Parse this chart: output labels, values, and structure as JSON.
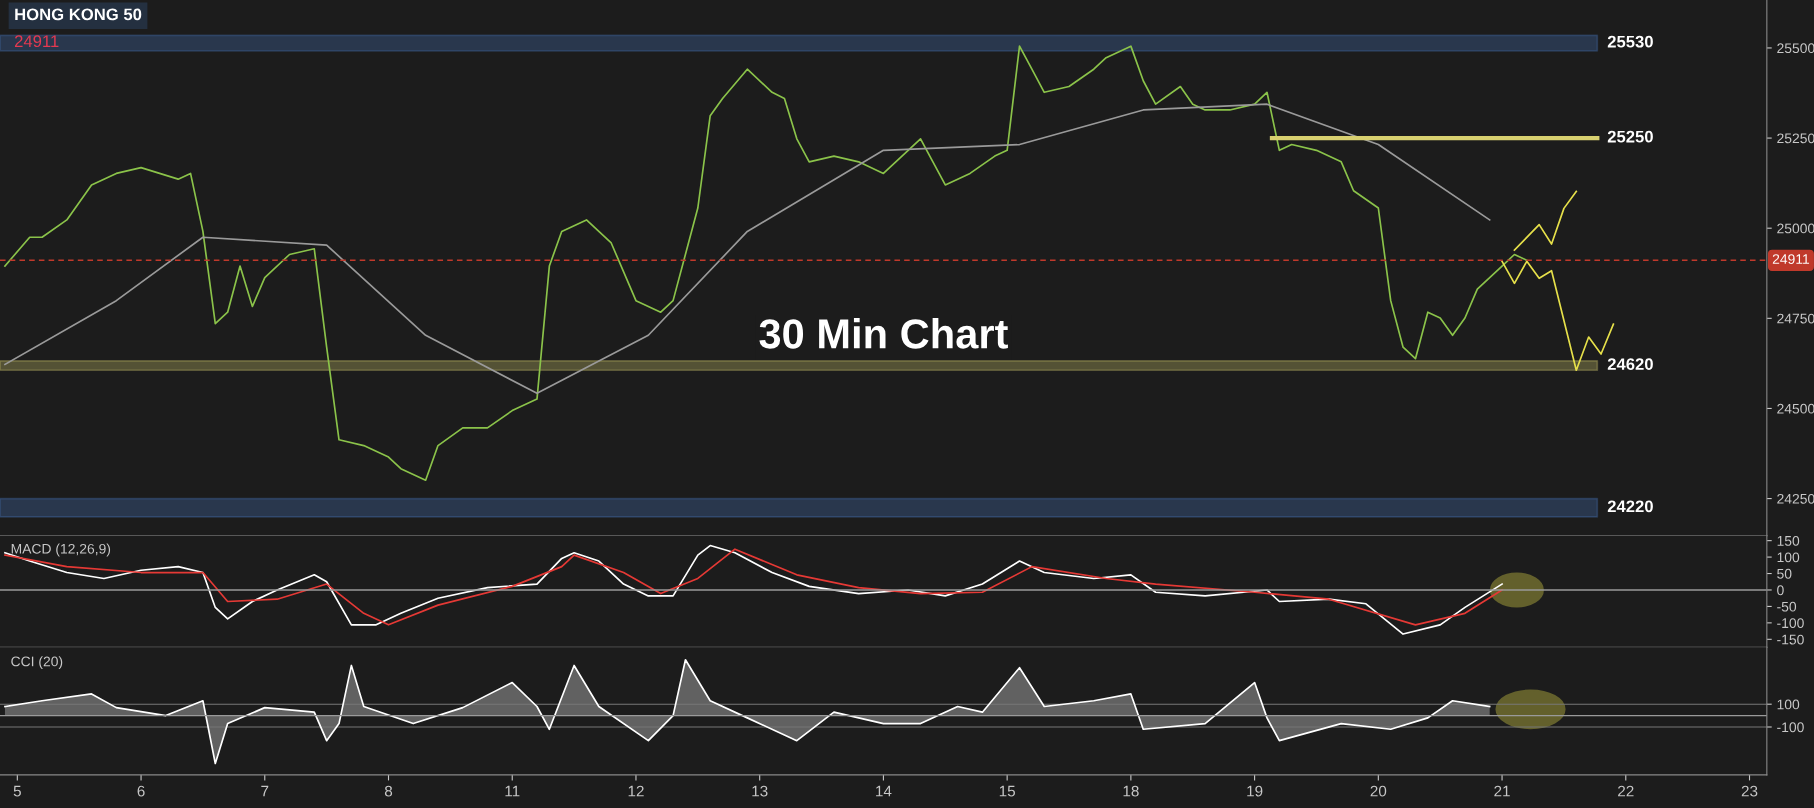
{
  "chart_data": [
    {
      "type": "line",
      "title": "HONG KONG 50",
      "subtitle": "24911",
      "annotations": [
        "30 Min Chart"
      ],
      "categories": [
        null,
        null,
        null,
        null,
        null,
        null,
        null,
        null,
        null,
        null,
        null,
        null,
        null,
        null,
        null,
        null,
        null,
        null,
        null,
        null,
        null,
        null,
        null,
        null,
        null,
        null,
        null,
        null,
        null,
        null,
        null,
        null,
        null,
        null,
        null,
        null,
        null,
        null,
        null,
        null,
        null,
        null,
        null,
        null,
        null,
        null,
        null,
        null,
        null,
        null,
        null,
        null,
        null,
        null,
        null,
        null,
        null,
        null,
        null,
        null,
        null,
        null,
        null,
        null,
        null,
        null,
        null,
        null,
        null,
        null,
        null,
        null,
        null,
        null,
        null,
        null,
        null,
        null,
        null,
        null,
        null,
        null,
        null,
        null,
        null,
        null,
        null,
        null,
        null,
        null,
        null,
        null,
        null,
        null,
        null,
        null,
        null,
        null,
        null,
        null,
        null,
        null,
        null,
        null,
        null,
        null,
        null,
        null,
        null,
        null,
        null,
        null,
        null,
        null,
        null,
        null,
        null,
        null,
        null,
        null,
        null,
        null,
        null,
        null,
        null,
        null,
        null,
        null,
        null,
        null,
        null,
        null,
        null,
        null,
        null,
        null,
        null,
        null,
        null,
        null,
        null,
        null,
        null
      ],
      "ylim": [
        24147,
        25633
      ],
      "yticks": [
        24250,
        24500,
        24750,
        25000,
        25250,
        25500
      ],
      "tick_labels": "y",
      "grid": false,
      "series": [
        {
          "color": "#8bc34a",
          "values": [
            24895,
            null,
            24975,
            24975,
            null,
            25023,
            null,
            25120,
            null,
            25152,
            null,
            25168,
            null,
            null,
            25136,
            25152,
            24991,
            24735,
            24767,
            24895,
            24783,
            24863,
            null,
            24927,
            null,
            24943,
            24670,
            24413,
            null,
            24397,
            null,
            24365,
            24333,
            null,
            24301,
            24397,
            null,
            24446,
            null,
            24446,
            null,
            24494,
            null,
            24526,
            24895,
            24991,
            null,
            25023,
            null,
            24959,
            null,
            24799,
            null,
            24767,
            24799,
            null,
            25056,
            25312,
            25360,
            null,
            25441,
            null,
            25377,
            25360,
            25248,
            25184,
            null,
            25200,
            null,
            25184,
            null,
            25152,
            null,
            25216,
            25248,
            25184,
            25120,
            null,
            25152,
            null,
            25200,
            25216,
            25505,
            25441,
            25377,
            null,
            25393,
            null,
            25441,
            25473,
            null,
            25505,
            25409,
            25344,
            null,
            25393,
            25344,
            25328,
            null,
            25328,
            null,
            25344,
            25377,
            25216,
            25232,
            null,
            25216,
            null,
            25184,
            25104,
            null,
            25056,
            24799,
            24670,
            24638,
            24767,
            24751,
            24703,
            24751,
            24831,
            null,
            24895,
            24927,
            24911,
            null,
            null,
            null,
            null,
            null,
            null,
            null,
            null,
            null,
            null,
            null,
            null,
            null,
            null,
            null,
            null,
            null,
            null,
            null
          ]
        },
        {
          "color": "#9a9a9a",
          "values": [
            24622,
            null,
            null,
            null,
            null,
            null,
            null,
            null,
            null,
            24799,
            null,
            null,
            null,
            null,
            null,
            null,
            24975,
            null,
            null,
            null,
            null,
            null,
            null,
            null,
            null,
            null,
            24953,
            null,
            null,
            null,
            null,
            null,
            null,
            null,
            24703,
            null,
            null,
            null,
            null,
            null,
            null,
            null,
            null,
            24542,
            null,
            null,
            null,
            null,
            null,
            null,
            null,
            null,
            24703,
            null,
            null,
            null,
            null,
            null,
            null,
            null,
            24991,
            null,
            null,
            null,
            null,
            null,
            null,
            null,
            null,
            null,
            null,
            25216,
            null,
            null,
            null,
            null,
            null,
            null,
            null,
            null,
            null,
            null,
            25232,
            null,
            null,
            null,
            null,
            null,
            null,
            null,
            null,
            null,
            25328,
            null,
            null,
            null,
            null,
            null,
            null,
            null,
            null,
            null,
            25344,
            null,
            null,
            null,
            null,
            null,
            null,
            null,
            null,
            25232,
            null,
            null,
            null,
            null,
            null,
            null,
            null,
            null,
            25023,
            null,
            null,
            null,
            null,
            null,
            null,
            null,
            null,
            null,
            null,
            null,
            null,
            null,
            null,
            null,
            null,
            null,
            null,
            null,
            null,
            null,
            null
          ]
        },
        {
          "color": "#e6e04a",
          "values": [
            null,
            null,
            null,
            null,
            null,
            null,
            null,
            null,
            null,
            null,
            null,
            null,
            null,
            null,
            null,
            null,
            null,
            null,
            null,
            null,
            null,
            null,
            null,
            null,
            null,
            null,
            null,
            null,
            null,
            null,
            null,
            null,
            null,
            null,
            null,
            null,
            null,
            null,
            null,
            null,
            null,
            null,
            null,
            null,
            null,
            null,
            null,
            null,
            null,
            null,
            null,
            null,
            null,
            null,
            null,
            null,
            null,
            null,
            null,
            null,
            null,
            null,
            null,
            null,
            null,
            null,
            null,
            null,
            null,
            null,
            null,
            null,
            null,
            null,
            null,
            null,
            null,
            null,
            null,
            null,
            null,
            null,
            null,
            null,
            null,
            null,
            null,
            null,
            null,
            null,
            null,
            null,
            null,
            null,
            null,
            null,
            null,
            null,
            null,
            null,
            null,
            null,
            null,
            null,
            null,
            null,
            null,
            null,
            null,
            null,
            null,
            null,
            null,
            null,
            null,
            null,
            null,
            null,
            null,
            null,
            null,
            null,
            24939,
            null,
            25010,
            24956,
            25055,
            25102,
            null,
            null,
            null,
            null,
            null,
            null,
            null,
            null,
            null,
            null,
            null,
            null,
            null,
            null,
            null
          ]
        },
        {
          "color": "#e6e04a",
          "values": [
            null,
            null,
            null,
            null,
            null,
            null,
            null,
            null,
            null,
            null,
            null,
            null,
            null,
            null,
            null,
            null,
            null,
            null,
            null,
            null,
            null,
            null,
            null,
            null,
            null,
            null,
            null,
            null,
            null,
            null,
            null,
            null,
            null,
            null,
            null,
            null,
            null,
            null,
            null,
            null,
            null,
            null,
            null,
            null,
            null,
            null,
            null,
            null,
            null,
            null,
            null,
            null,
            null,
            null,
            null,
            null,
            null,
            null,
            null,
            null,
            null,
            null,
            null,
            null,
            null,
            null,
            null,
            null,
            null,
            null,
            null,
            null,
            null,
            null,
            null,
            null,
            null,
            null,
            null,
            null,
            null,
            null,
            null,
            null,
            null,
            null,
            null,
            null,
            null,
            null,
            null,
            null,
            null,
            null,
            null,
            null,
            null,
            null,
            null,
            null,
            null,
            null,
            null,
            null,
            null,
            null,
            null,
            null,
            null,
            null,
            null,
            null,
            null,
            null,
            null,
            null,
            null,
            null,
            null,
            null,
            null,
            24908,
            24847,
            24908,
            24861,
            24882,
            null,
            24606,
            24698,
            24651,
            24734,
            null,
            null,
            null,
            null,
            null,
            null,
            null,
            null,
            null,
            null,
            null,
            null
          ]
        }
      ],
      "ref_lines": [
        {
          "axis": "y",
          "value": 24911,
          "label": "24911",
          "color": "#c0392b",
          "line_style": "dashed"
        },
        {
          "axis": "y",
          "value": 25250,
          "label": "25250",
          "color": "#d8d070",
          "line_style": "solid"
        }
      ],
      "bands": [
        {
          "axis": "y",
          "from": 25492,
          "to": 25535,
          "label": "25530",
          "color": "#4a78c0"
        },
        {
          "axis": "y",
          "from": 24606,
          "to": 24632,
          "label": "24620",
          "color": "#d8d070"
        },
        {
          "axis": "y",
          "from": 24199,
          "to": 24250,
          "label": "24220",
          "color": "#4a78c0"
        }
      ]
    },
    {
      "type": "line",
      "title": "MACD (12,26,9)",
      "categories": [
        null,
        null,
        null,
        null,
        null,
        null,
        null,
        null,
        null,
        null,
        null,
        null,
        null,
        null,
        null,
        null,
        null,
        null,
        null,
        null,
        null,
        null,
        null,
        null,
        null,
        null,
        null,
        null,
        null,
        null,
        null,
        null,
        null,
        null,
        null,
        null,
        null,
        null,
        null,
        null,
        null,
        null,
        null,
        null,
        null,
        null,
        null,
        null,
        null,
        null,
        null,
        null,
        null,
        null,
        null,
        null,
        null,
        null,
        null,
        null,
        null,
        null,
        null,
        null,
        null,
        null,
        null,
        null,
        null,
        null,
        null,
        null,
        null,
        null,
        null,
        null,
        null,
        null,
        null,
        null,
        null,
        null,
        null,
        null,
        null,
        null,
        null,
        null,
        null,
        null,
        null,
        null,
        null,
        null,
        null,
        null,
        null,
        null,
        null,
        null,
        null,
        null,
        null,
        null,
        null,
        null,
        null,
        null,
        null,
        null,
        null,
        null,
        null,
        null,
        null,
        null,
        null,
        null,
        null,
        null,
        null,
        null,
        null,
        null,
        null,
        null,
        null,
        null,
        null,
        null,
        null,
        null,
        null,
        null,
        null,
        null,
        null,
        null,
        null,
        null,
        null,
        null,
        null
      ],
      "ylim": [
        -174,
        165
      ],
      "yticks": [
        150,
        100,
        50,
        0,
        -50,
        -100,
        -150
      ],
      "tick_labels": "y",
      "grid": false,
      "series": [
        {
          "color": "#ffffff",
          "values": [
            113,
            null,
            88,
            null,
            null,
            53,
            null,
            null,
            35,
            null,
            null,
            60,
            null,
            null,
            71,
            null,
            53,
            -53,
            -88,
            null,
            -35,
            null,
            0,
            null,
            null,
            46,
            25,
            null,
            -106,
            null,
            -106,
            null,
            -71,
            null,
            null,
            -25,
            null,
            null,
            null,
            7,
            null,
            null,
            null,
            18,
            null,
            96,
            113,
            null,
            88,
            null,
            18,
            null,
            -18,
            null,
            -18,
            null,
            106,
            135,
            null,
            113,
            null,
            null,
            53,
            null,
            null,
            11,
            null,
            null,
            null,
            -11,
            null,
            null,
            null,
            0,
            null,
            null,
            -18,
            null,
            null,
            18,
            null,
            null,
            88,
            null,
            53,
            null,
            null,
            null,
            35,
            null,
            null,
            46,
            null,
            -7,
            null,
            null,
            null,
            -18,
            null,
            null,
            null,
            null,
            0,
            -35,
            null,
            null,
            null,
            -28,
            null,
            null,
            -42,
            null,
            null,
            -134,
            null,
            null,
            -106,
            null,
            -53,
            null,
            null,
            18,
            null,
            null,
            null,
            null,
            null,
            null,
            null,
            null,
            null,
            null,
            null,
            null,
            null,
            null,
            null,
            null,
            null,
            null,
            null,
            null,
            null
          ]
        },
        {
          "color": "#e53935",
          "values": [
            106,
            null,
            null,
            null,
            null,
            71,
            null,
            null,
            null,
            null,
            null,
            53,
            null,
            null,
            null,
            null,
            53,
            null,
            -35,
            null,
            null,
            null,
            -28,
            null,
            null,
            null,
            18,
            null,
            null,
            -71,
            null,
            -106,
            null,
            null,
            null,
            -46,
            null,
            null,
            null,
            null,
            null,
            11,
            null,
            null,
            null,
            71,
            106,
            null,
            null,
            null,
            53,
            null,
            null,
            -11,
            null,
            null,
            35,
            null,
            null,
            124,
            null,
            null,
            null,
            null,
            46,
            null,
            null,
            null,
            null,
            7,
            null,
            null,
            null,
            null,
            -11,
            null,
            null,
            null,
            null,
            -7,
            null,
            null,
            null,
            71,
            null,
            null,
            null,
            null,
            null,
            35,
            null,
            null,
            null,
            18,
            null,
            null,
            null,
            null,
            null,
            null,
            null,
            -7,
            null,
            null,
            null,
            null,
            null,
            -28,
            null,
            null,
            null,
            null,
            null,
            null,
            -106,
            null,
            null,
            null,
            -71,
            null,
            null,
            0,
            null,
            null,
            null,
            null,
            null,
            null,
            null,
            null,
            null,
            null,
            null,
            null,
            null,
            null,
            null,
            null,
            null,
            null,
            null,
            null,
            null
          ]
        }
      ],
      "ref_lines": [
        {
          "axis": "y",
          "value": 0,
          "color": "#9a9a9a",
          "line_style": "solid"
        }
      ]
    },
    {
      "type": "area",
      "title": "CCI (20)",
      "categories": [
        null,
        "5",
        null,
        null,
        null,
        null,
        null,
        null,
        null,
        null,
        null,
        "6",
        null,
        null,
        null,
        null,
        null,
        null,
        null,
        null,
        null,
        "7",
        null,
        null,
        null,
        null,
        null,
        null,
        null,
        null,
        null,
        "8",
        null,
        null,
        null,
        null,
        null,
        null,
        null,
        null,
        null,
        "11",
        null,
        null,
        null,
        null,
        null,
        null,
        null,
        null,
        null,
        "12",
        null,
        null,
        null,
        null,
        null,
        null,
        null,
        null,
        null,
        "13",
        null,
        null,
        null,
        null,
        null,
        null,
        null,
        null,
        null,
        "14",
        null,
        null,
        null,
        null,
        null,
        null,
        null,
        null,
        null,
        "15",
        null,
        null,
        null,
        null,
        null,
        null,
        null,
        null,
        null,
        "18",
        null,
        null,
        null,
        null,
        null,
        null,
        null,
        null,
        null,
        "19",
        null,
        null,
        null,
        null,
        null,
        null,
        null,
        null,
        null,
        "20",
        null,
        null,
        null,
        null,
        null,
        null,
        null,
        null,
        null,
        "21",
        null,
        null,
        null,
        null,
        null,
        null,
        null,
        null,
        null,
        "22",
        null,
        null,
        null,
        null,
        null,
        null,
        null,
        null,
        null,
        "23",
        null
      ],
      "ylim": [
        -520,
        600
      ],
      "yticks": [
        100,
        -100
      ],
      "grid": "y",
      "series": [
        {
          "color": "#ffffff",
          "values": [
            80,
            null,
            null,
            130,
            null,
            null,
            null,
            190,
            null,
            70,
            null,
            null,
            null,
            0,
            null,
            null,
            130,
            -420,
            -70,
            null,
            null,
            70,
            null,
            null,
            null,
            30,
            -220,
            -70,
            440,
            80,
            null,
            null,
            null,
            -70,
            null,
            null,
            null,
            70,
            null,
            null,
            null,
            290,
            null,
            80,
            -120,
            null,
            440,
            null,
            80,
            null,
            null,
            null,
            -220,
            null,
            0,
            490,
            null,
            130,
            null,
            null,
            -20,
            null,
            null,
            null,
            -220,
            null,
            null,
            30,
            null,
            null,
            null,
            -70,
            null,
            null,
            -70,
            null,
            null,
            80,
            null,
            30,
            null,
            null,
            420,
            null,
            80,
            null,
            null,
            null,
            130,
            null,
            null,
            190,
            -120,
            null,
            null,
            null,
            null,
            -70,
            null,
            null,
            null,
            290,
            -20,
            -220,
            null,
            null,
            null,
            null,
            -70,
            null,
            null,
            null,
            -120,
            null,
            null,
            -20,
            null,
            130,
            null,
            null,
            80,
            null,
            null,
            null,
            null,
            null,
            null,
            null,
            null,
            null,
            null,
            null,
            null,
            null,
            null,
            null,
            null,
            null,
            null,
            null,
            null,
            null,
            null
          ]
        }
      ],
      "ref_lines": [
        {
          "axis": "y",
          "value": 0,
          "color": "#9a9a9a",
          "line_style": "solid"
        }
      ]
    }
  ]
}
